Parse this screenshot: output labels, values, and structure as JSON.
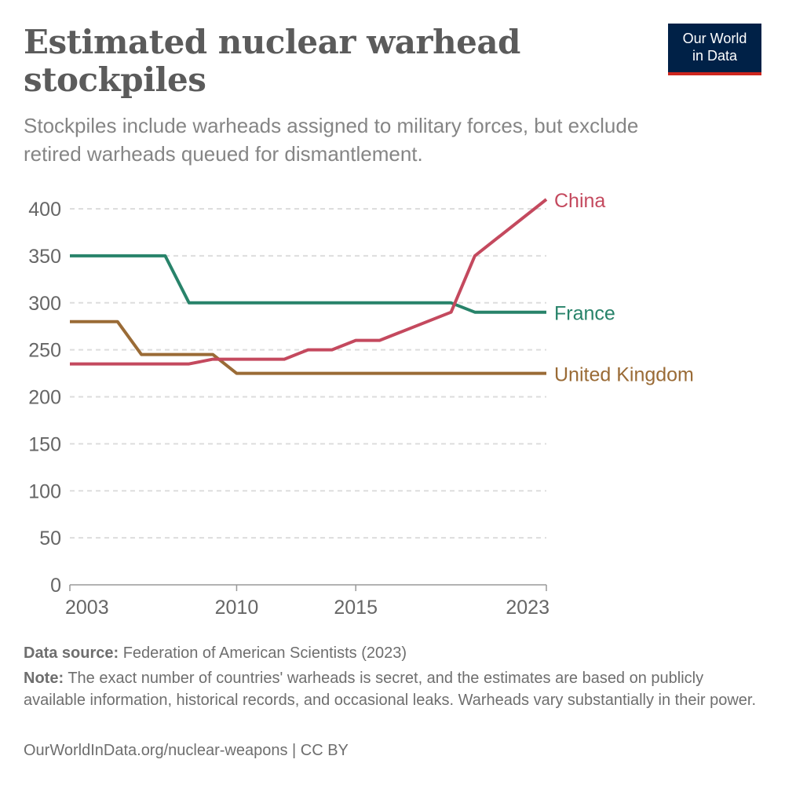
{
  "header": {
    "title": "Estimated nuclear warhead stockpiles",
    "subtitle": "Stockpiles include warheads assigned to military forces, but exclude retired warheads queued for dismantlement.",
    "logo_line1": "Our World",
    "logo_line2": "in Data"
  },
  "chart_data": {
    "type": "line",
    "title": "Estimated nuclear warhead stockpiles",
    "xlabel": "",
    "ylabel": "",
    "xlim": [
      2003,
      2023
    ],
    "ylim": [
      0,
      400
    ],
    "x_ticks": [
      "2003",
      "2010",
      "2015",
      "2023"
    ],
    "y_ticks": [
      "0",
      "50",
      "100",
      "150",
      "200",
      "250",
      "300",
      "350",
      "400"
    ],
    "grid": "horizontal dashed",
    "legend": "inline labels at line ends (right)",
    "series": [
      {
        "name": "China",
        "color": "#c4495e",
        "points": [
          [
            2003,
            235
          ],
          [
            2004,
            235
          ],
          [
            2005,
            235
          ],
          [
            2006,
            235
          ],
          [
            2007,
            235
          ],
          [
            2008,
            235
          ],
          [
            2009,
            240
          ],
          [
            2010,
            240
          ],
          [
            2011,
            240
          ],
          [
            2012,
            240
          ],
          [
            2013,
            250
          ],
          [
            2014,
            250
          ],
          [
            2015,
            260
          ],
          [
            2016,
            260
          ],
          [
            2019,
            290
          ],
          [
            2020,
            350
          ],
          [
            2023,
            410
          ]
        ]
      },
      {
        "name": "France",
        "color": "#28836a",
        "points": [
          [
            2003,
            350
          ],
          [
            2004,
            350
          ],
          [
            2005,
            350
          ],
          [
            2006,
            350
          ],
          [
            2007,
            350
          ],
          [
            2008,
            300
          ],
          [
            2009,
            300
          ],
          [
            2010,
            300
          ],
          [
            2011,
            300
          ],
          [
            2012,
            300
          ],
          [
            2013,
            300
          ],
          [
            2014,
            300
          ],
          [
            2015,
            300
          ],
          [
            2016,
            300
          ],
          [
            2017,
            300
          ],
          [
            2018,
            300
          ],
          [
            2019,
            300
          ],
          [
            2020,
            290
          ],
          [
            2021,
            290
          ],
          [
            2022,
            290
          ],
          [
            2023,
            290
          ]
        ]
      },
      {
        "name": "United Kingdom",
        "color": "#9a6b36",
        "points": [
          [
            2003,
            280
          ],
          [
            2004,
            280
          ],
          [
            2005,
            280
          ],
          [
            2006,
            245
          ],
          [
            2007,
            245
          ],
          [
            2008,
            245
          ],
          [
            2009,
            245
          ],
          [
            2010,
            225
          ],
          [
            2011,
            225
          ],
          [
            2012,
            225
          ],
          [
            2013,
            225
          ],
          [
            2014,
            225
          ],
          [
            2015,
            225
          ],
          [
            2016,
            225
          ],
          [
            2017,
            225
          ],
          [
            2018,
            225
          ],
          [
            2019,
            225
          ],
          [
            2020,
            225
          ],
          [
            2021,
            225
          ],
          [
            2022,
            225
          ],
          [
            2023,
            225
          ]
        ]
      }
    ]
  },
  "footer": {
    "source_label": "Data source:",
    "source_text": "Federation of American Scientists (2023)",
    "note_label": "Note:",
    "note_text": "The exact number of countries' warheads is secret, and the estimates are based on publicly available information, historical records, and occasional leaks. Warheads vary substantially in their power.",
    "credit": "OurWorldInData.org/nuclear-weapons | CC BY"
  }
}
